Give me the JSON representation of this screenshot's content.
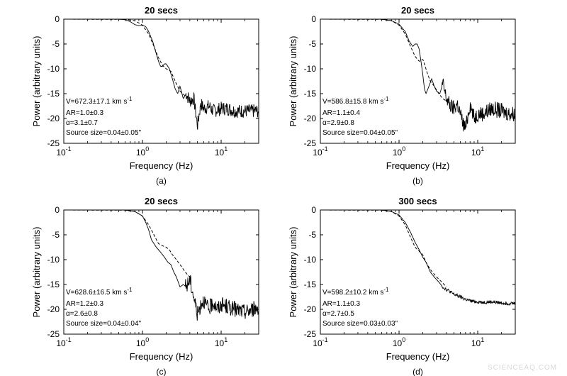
{
  "watermark": "SCIENCEAQ.COM",
  "chart_data": [
    {
      "type": "line",
      "title": "20 secs",
      "panel_label": "(a)",
      "xlabel": "Frequency (Hz)",
      "ylabel": "Power (arbitrary units)",
      "xscale": "log",
      "xlim": [
        0.1,
        30
      ],
      "ylim": [
        -25,
        0
      ],
      "xticks": [
        {
          "value": 0.1,
          "base": "10",
          "exp": "-1"
        },
        {
          "value": 1,
          "base": "10",
          "exp": "0"
        },
        {
          "value": 10,
          "base": "10",
          "exp": "1"
        }
      ],
      "yticks": [
        0,
        -5,
        -10,
        -15,
        -20,
        -25
      ],
      "grid": false,
      "annotations": [
        "V=672.3±17.1 km s",
        "AR=1.0±0.3",
        "α=3.1±0.7",
        "Source size=0.04±0.05\""
      ],
      "annotation_sup": "-1",
      "series": [
        {
          "style": "solid",
          "noise": 1.4,
          "x": [
            0.1,
            0.5,
            0.6,
            0.7,
            0.8,
            0.9,
            1.0,
            1.1,
            1.2,
            1.35,
            1.5,
            1.6,
            1.7,
            1.8,
            1.9,
            2.0,
            2.2,
            2.4,
            2.6,
            2.8,
            3.0,
            3.3,
            3.6,
            4.0,
            4.5,
            5.0,
            5.5,
            6,
            7,
            8,
            10,
            12,
            15,
            20,
            25,
            30
          ],
          "y": [
            0,
            0,
            -0.1,
            -0.5,
            -1.1,
            -1.3,
            -1.2,
            -1.5,
            -2.5,
            -4.5,
            -7,
            -8.5,
            -9.5,
            -9.5,
            -9,
            -9,
            -10,
            -12,
            -14,
            -15,
            -13.5,
            -16,
            -15,
            -16.5,
            -16,
            -21.5,
            -17,
            -18,
            -17.5,
            -18.5,
            -18,
            -18,
            -18.5,
            -18.5,
            -18.5,
            -18.5
          ]
        },
        {
          "style": "dashed",
          "noise": 0,
          "x": [
            0.1,
            0.6,
            0.8,
            1.0,
            1.2,
            1.4,
            1.6,
            1.8,
            2.0,
            2.3,
            2.6,
            3.0,
            3.5,
            4.0
          ],
          "y": [
            0,
            -0.05,
            -0.3,
            -1.2,
            -3,
            -5.5,
            -7.8,
            -9.3,
            -10,
            -10.5,
            -12.5,
            -14.5,
            -15.5,
            -16
          ]
        }
      ]
    },
    {
      "type": "line",
      "title": "20 secs",
      "panel_label": "(b)",
      "xlabel": "Frequency (Hz)",
      "ylabel": "Power (arbitrary units)",
      "xscale": "log",
      "xlim": [
        0.1,
        30
      ],
      "ylim": [
        -25,
        0
      ],
      "xticks": [
        {
          "value": 0.1,
          "base": "10",
          "exp": "-1"
        },
        {
          "value": 1,
          "base": "10",
          "exp": "0"
        },
        {
          "value": 10,
          "base": "10",
          "exp": "1"
        }
      ],
      "yticks": [
        0,
        -5,
        -10,
        -15,
        -20,
        -25
      ],
      "grid": false,
      "annotations": [
        "V=586.8±15.8 km s",
        "AR=1.1±0.4",
        "α=2.9±0.8",
        "Source size=0.04±0.05\""
      ],
      "annotation_sup": "-1",
      "series": [
        {
          "style": "solid",
          "noise": 1.6,
          "x": [
            0.1,
            0.6,
            0.8,
            1.0,
            1.2,
            1.35,
            1.5,
            1.6,
            1.7,
            1.8,
            1.9,
            2.0,
            2.1,
            2.2,
            2.4,
            2.6,
            2.8,
            3.0,
            3.3,
            3.6,
            4,
            4.5,
            5,
            5.5,
            6,
            6.5,
            7,
            8,
            9,
            10,
            12,
            15,
            20,
            25,
            30
          ],
          "y": [
            0,
            0,
            -0.3,
            -1,
            -2.5,
            -4.5,
            -5.5,
            -5,
            -5,
            -6,
            -8.5,
            -11,
            -14,
            -15,
            -13.5,
            -12,
            -13.5,
            -14.5,
            -15,
            -13,
            -16,
            -17.5,
            -18,
            -17,
            -19,
            -21,
            -22,
            -17,
            -20,
            -19,
            -19,
            -18,
            -18.5,
            -19,
            -19
          ]
        },
        {
          "style": "dashed",
          "noise": 0,
          "x": [
            0.1,
            0.6,
            0.8,
            1.0,
            1.2,
            1.4,
            1.6,
            1.8,
            1.9,
            2.0,
            2.1,
            2.3,
            2.5,
            2.8,
            3.2,
            3.6,
            4.0
          ],
          "y": [
            0,
            -0.05,
            -0.3,
            -1.2,
            -3,
            -5.5,
            -7.5,
            -8.5,
            -8.3,
            -8,
            -9,
            -11,
            -12.5,
            -13.5,
            -15,
            -16,
            -16.5
          ]
        }
      ]
    },
    {
      "type": "line",
      "title": "20 secs",
      "panel_label": "(c)",
      "xlabel": "Frequency (Hz)",
      "ylabel": "Power (arbitrary units)",
      "xscale": "log",
      "xlim": [
        0.1,
        30
      ],
      "ylim": [
        -25,
        0
      ],
      "xticks": [
        {
          "value": 0.1,
          "base": "10",
          "exp": "-1"
        },
        {
          "value": 1,
          "base": "10",
          "exp": "0"
        },
        {
          "value": 10,
          "base": "10",
          "exp": "1"
        }
      ],
      "yticks": [
        0,
        -5,
        -10,
        -15,
        -20,
        -25
      ],
      "grid": false,
      "annotations": [
        "V=628.6±16.5 km s",
        "AR=1.2±0.3",
        "α=2.6±0.8",
        "Source size=0.04±0.04\""
      ],
      "annotation_sup": "-1",
      "series": [
        {
          "style": "solid",
          "noise": 1.6,
          "x": [
            0.1,
            0.6,
            0.8,
            1.0,
            1.1,
            1.2,
            1.3,
            1.5,
            1.7,
            1.9,
            2.1,
            2.3,
            2.5,
            2.7,
            3.0,
            3.3,
            3.6,
            4,
            4.5,
            5,
            5.5,
            6,
            6.5,
            7,
            8,
            9,
            10,
            12,
            15,
            20,
            25,
            30
          ],
          "y": [
            0,
            0,
            -0.3,
            -1.2,
            -2.5,
            -4,
            -6,
            -7.5,
            -8.5,
            -9.5,
            -10.5,
            -11,
            -12.5,
            -13.5,
            -15.5,
            -15,
            -15.5,
            -14,
            -17.5,
            -21,
            -19,
            -18,
            -19.5,
            -20,
            -18.5,
            -20,
            -19,
            -19.5,
            -20,
            -20.5,
            -20,
            -19.5
          ]
        },
        {
          "style": "dashed",
          "noise": 0,
          "x": [
            0.1,
            0.6,
            0.8,
            1.0,
            1.2,
            1.4,
            1.6,
            1.8,
            2.0,
            2.2,
            2.4,
            2.7,
            3.0,
            3.5,
            4.0
          ],
          "y": [
            0,
            -0.05,
            -0.3,
            -1.2,
            -3,
            -5,
            -6.8,
            -7.2,
            -7.5,
            -8,
            -9,
            -10,
            -11,
            -12.5,
            -13.5
          ]
        }
      ]
    },
    {
      "type": "line",
      "title": "300 secs",
      "panel_label": "(d)",
      "xlabel": "Frequency (Hz)",
      "ylabel": "Power (arbitrary units)",
      "xscale": "log",
      "xlim": [
        0.1,
        30
      ],
      "ylim": [
        -25,
        0
      ],
      "xticks": [
        {
          "value": 0.1,
          "base": "10",
          "exp": "-1"
        },
        {
          "value": 1,
          "base": "10",
          "exp": "0"
        },
        {
          "value": 10,
          "base": "10",
          "exp": "1"
        }
      ],
      "yticks": [
        0,
        -5,
        -10,
        -15,
        -20,
        -25
      ],
      "grid": false,
      "annotations": [
        "V=598.2±10.2 km s",
        "AR=1.1±0.3",
        "α=2.7±0.5",
        "Source size=0.03±0.03\""
      ],
      "annotation_sup": "-1",
      "series": [
        {
          "style": "solid",
          "noise": 0.35,
          "x": [
            0.1,
            0.6,
            0.8,
            1.0,
            1.2,
            1.4,
            1.6,
            1.8,
            2.0,
            2.2,
            2.5,
            2.8,
            3.2,
            3.6,
            4,
            4.5,
            5,
            6,
            7,
            8,
            9,
            10,
            12,
            15,
            20,
            25,
            30
          ],
          "y": [
            0,
            0,
            -0.3,
            -1,
            -2.5,
            -4.5,
            -6.5,
            -8,
            -9.5,
            -10.5,
            -12.5,
            -13.5,
            -14.5,
            -15.5,
            -16,
            -16.5,
            -17,
            -17.5,
            -18,
            -18.3,
            -18.4,
            -18.5,
            -18.6,
            -18.5,
            -18.7,
            -18.8,
            -18.8
          ]
        },
        {
          "style": "dashed",
          "noise": 0,
          "x": [
            0.1,
            0.6,
            0.8,
            1.0,
            1.2,
            1.4,
            1.6,
            1.8,
            2.0,
            2.2,
            2.5,
            3.0,
            3.5,
            4.0
          ],
          "y": [
            0,
            -0.05,
            -0.3,
            -1.2,
            -3,
            -5.5,
            -7.5,
            -8.3,
            -9,
            -10.5,
            -12,
            -13.5,
            -14.5,
            -15.5
          ]
        }
      ]
    }
  ]
}
